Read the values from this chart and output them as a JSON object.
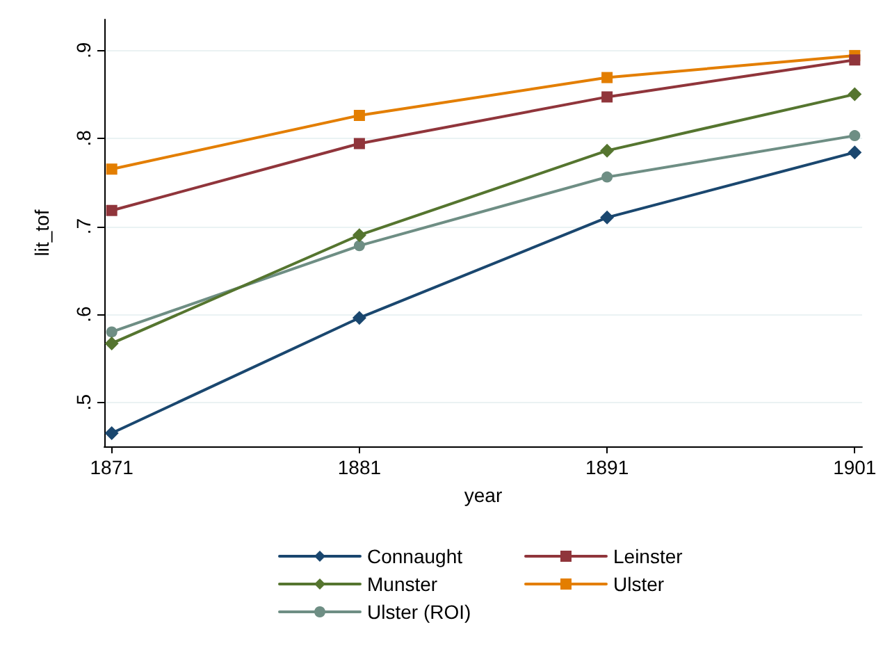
{
  "chart_data": {
    "type": "line",
    "xlabel": "year",
    "ylabel": "lit_tof",
    "x": [
      1871,
      1881,
      1891,
      1901
    ],
    "xlim": [
      1870.7,
      1901.3
    ],
    "xticks": [
      1871,
      1881,
      1891,
      1901
    ],
    "ylim": [
      0.45,
      0.935
    ],
    "yticks": [
      {
        "value": 0.5,
        "label": ".5"
      },
      {
        "value": 0.6,
        "label": ".6"
      },
      {
        "value": 0.7,
        "label": ".7"
      },
      {
        "value": 0.8,
        "label": ".8"
      },
      {
        "value": 0.9,
        "label": ".9"
      }
    ],
    "grid": "y",
    "legend": "bottom",
    "line_style": "solid",
    "series": [
      {
        "name": "Connaught",
        "color": "#1a476f",
        "marker": "diamond",
        "values": [
          0.465,
          0.596,
          0.71,
          0.784
        ]
      },
      {
        "name": "Leinster",
        "color": "#90353b",
        "marker": "square",
        "values": [
          0.718,
          0.794,
          0.847,
          0.889
        ]
      },
      {
        "name": "Munster",
        "color": "#55752f",
        "marker": "diamond",
        "values": [
          0.567,
          0.69,
          0.786,
          0.85
        ]
      },
      {
        "name": "Ulster",
        "color": "#e37e00",
        "marker": "square",
        "values": [
          0.765,
          0.826,
          0.869,
          0.894
        ]
      },
      {
        "name": "Ulster (ROI)",
        "color": "#6e8e84",
        "marker": "circle",
        "values": [
          0.58,
          0.678,
          0.756,
          0.803
        ]
      }
    ]
  }
}
